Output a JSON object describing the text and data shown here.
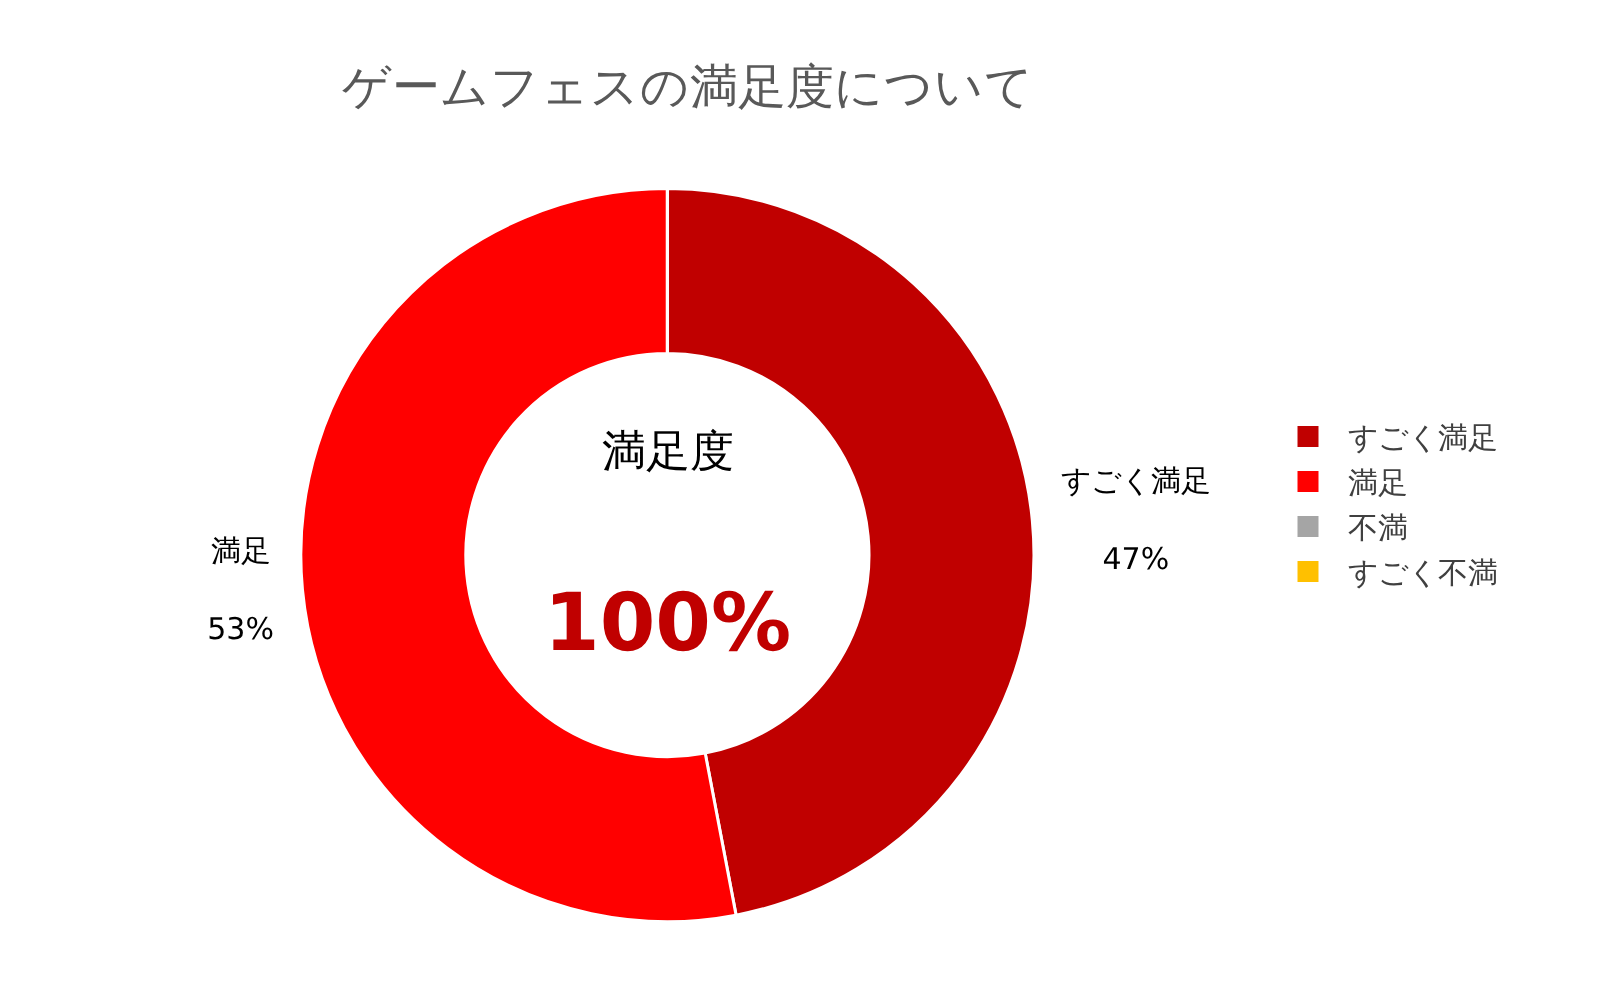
{
  "chart_data": {
    "type": "donut",
    "title": "ゲームフェスの満足度について",
    "categories": [
      "すごく満足",
      "満足",
      "不満",
      "すごく不満"
    ],
    "values": [
      47,
      53,
      0,
      0
    ],
    "colors": [
      "#c00000",
      "#ff0000",
      "#a5a5a5",
      "#ffc000"
    ],
    "value_labels": [
      "47%",
      "53%",
      null,
      null
    ],
    "annotations": [
      "満足度",
      "100%"
    ],
    "legend": "right"
  }
}
